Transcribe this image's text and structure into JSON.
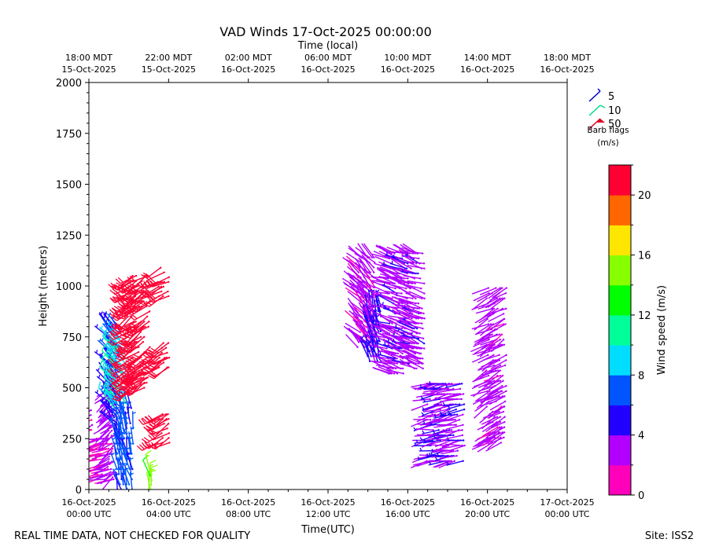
{
  "chart_data": {
    "type": "wind-barb",
    "title": "VAD Winds 17-Oct-2025 00:00:00",
    "top_axis_title": "Time (local)",
    "xlabel": "Time(UTC)",
    "ylabel": "Height (meters)",
    "x_range_hours_utc": [
      0,
      24
    ],
    "ylim": [
      0,
      2000
    ],
    "y_ticks": [
      0,
      250,
      500,
      750,
      1000,
      1250,
      1500,
      1750,
      2000
    ],
    "x_ticks_utc": [
      {
        "hour": 0,
        "line1": "16-Oct-2025",
        "line2": "00:00 UTC"
      },
      {
        "hour": 4,
        "line1": "16-Oct-2025",
        "line2": "04:00 UTC"
      },
      {
        "hour": 8,
        "line1": "16-Oct-2025",
        "line2": "08:00 UTC"
      },
      {
        "hour": 12,
        "line1": "16-Oct-2025",
        "line2": "12:00 UTC"
      },
      {
        "hour": 16,
        "line1": "16-Oct-2025",
        "line2": "16:00 UTC"
      },
      {
        "hour": 20,
        "line1": "16-Oct-2025",
        "line2": "20:00 UTC"
      },
      {
        "hour": 24,
        "line1": "17-Oct-2025",
        "line2": "00:00 UTC"
      }
    ],
    "x_ticks_local": [
      {
        "hour": 0,
        "line1": "18:00 MDT",
        "line2": "15-Oct-2025"
      },
      {
        "hour": 4,
        "line1": "22:00 MDT",
        "line2": "15-Oct-2025"
      },
      {
        "hour": 8,
        "line1": "02:00 MDT",
        "line2": "16-Oct-2025"
      },
      {
        "hour": 12,
        "line1": "06:00 MDT",
        "line2": "16-Oct-2025"
      },
      {
        "hour": 16,
        "line1": "10:00 MDT",
        "line2": "16-Oct-2025"
      },
      {
        "hour": 20,
        "line1": "14:00 MDT",
        "line2": "16-Oct-2025"
      },
      {
        "hour": 24,
        "line1": "18:00 MDT",
        "line2": "16-Oct-2025"
      }
    ],
    "legend": {
      "entries": [
        {
          "label": "5",
          "color": "#0000cc"
        },
        {
          "label": "10",
          "color": "#00dd88"
        },
        {
          "label": "50",
          "color": "#dd0022"
        }
      ],
      "title_line1": "Barb flags",
      "title_line2": "(m/s)",
      "placement": "upper-right-outside"
    },
    "colorbar": {
      "label": "Wind speed (m/s)",
      "min": 0,
      "max": 22,
      "step": 2,
      "ticks": [
        0,
        4,
        8,
        12,
        16,
        20
      ],
      "colors": [
        "#ff00bb",
        "#b200ff",
        "#2200ff",
        "#0055ff",
        "#00ddff",
        "#00ff99",
        "#00ff00",
        "#88ff00",
        "#ffe600",
        "#ff6600",
        "#ff0033"
      ]
    },
    "series": [
      {
        "name": "magenta-left-edge",
        "hours": [
          0.0,
          0.15
        ],
        "heights": [
          220,
          390
        ],
        "speed": 1.5,
        "dir": 240
      },
      {
        "name": "magenta-lower-cluster",
        "hours": [
          0.4,
          1.2
        ],
        "heights": [
          50,
          250
        ],
        "speed": 1.8,
        "dir": 255
      },
      {
        "name": "purple-column",
        "hours": [
          1.0,
          1.3
        ],
        "heights": [
          60,
          520
        ],
        "speed": 3.0,
        "dir": 230
      },
      {
        "name": "blue-column",
        "hours": [
          1.0,
          1.55
        ],
        "heights": [
          330,
          800
        ],
        "speed": 5.5,
        "dir": 320
      },
      {
        "name": "cyan-green-column",
        "hours": [
          1.2,
          1.85
        ],
        "heights": [
          400,
          740
        ],
        "speed": 9.5,
        "dir": 320
      },
      {
        "name": "low-blue-column",
        "hours": [
          1.4,
          2.2
        ],
        "heights": [
          0,
          400
        ],
        "speed": 6.5,
        "dir": 345
      },
      {
        "name": "red-main-column",
        "hours": [
          2.0,
          3.0
        ],
        "heights": [
          500,
          1050
        ],
        "speed": 21,
        "dir": 235
      },
      {
        "name": "green-surface",
        "hours": [
          3.0,
          3.1
        ],
        "heights": [
          0,
          90
        ],
        "speed": 14.5,
        "dir": 350
      },
      {
        "name": "red-upper-group",
        "hours": [
          3.5,
          4.0
        ],
        "heights": [
          950,
          1090
        ],
        "speed": 21,
        "dir": 240
      },
      {
        "name": "red-mid-group",
        "hours": [
          3.5,
          4.0
        ],
        "heights": [
          600,
          720
        ],
        "speed": 21,
        "dir": 240
      },
      {
        "name": "red-lower-group",
        "hours": [
          3.5,
          4.0
        ],
        "heights": [
          230,
          370
        ],
        "speed": 21,
        "dir": 240
      },
      {
        "name": "magenta-purple-morning",
        "hours": [
          13.5,
          14.4
        ],
        "heights": [
          700,
          1140
        ],
        "speed": 2.5,
        "dir": 315
      },
      {
        "name": "blue-morning",
        "hours": [
          14.0,
          14.6
        ],
        "heights": [
          630,
          900
        ],
        "speed": 4.5,
        "dir": 340
      },
      {
        "name": "purple-late-morning",
        "hours": [
          15.0,
          16.8
        ],
        "heights": [
          570,
          1160
        ],
        "speed": 3.2,
        "dir": 290
      },
      {
        "name": "purple-noon-low",
        "hours": [
          17.0,
          18.8
        ],
        "heights": [
          140,
          520
        ],
        "speed": 3.5,
        "dir": 260
      },
      {
        "name": "purple-afternoon-column",
        "hours": [
          20.0,
          20.9
        ],
        "heights": [
          230,
          990
        ],
        "speed": 2.8,
        "dir": 240
      }
    ]
  },
  "footer": {
    "left_note": "REAL TIME DATA, NOT CHECKED FOR QUALITY",
    "site": "Site: ISS2"
  }
}
